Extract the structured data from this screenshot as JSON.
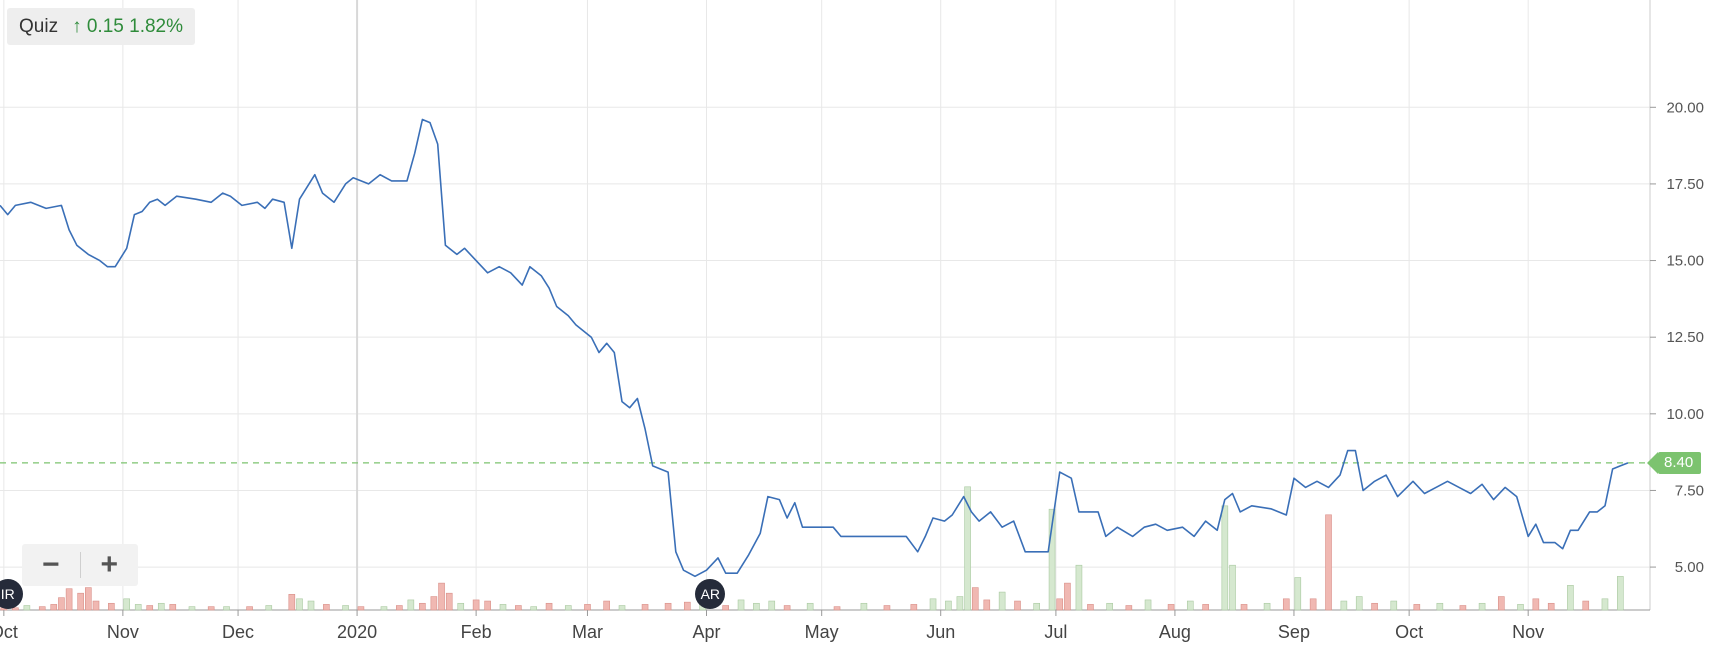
{
  "legend": {
    "symbol": "Quiz",
    "arrow": "↑",
    "change": "0.15",
    "change_pct": "1.82%"
  },
  "zoom": {
    "minus": "−",
    "plus": "+"
  },
  "current_price": {
    "value": 8.4,
    "label": "8.40"
  },
  "events": [
    {
      "label": "IR",
      "date": "2019-10-02"
    },
    {
      "label": "AR",
      "date": "2020-04-02"
    }
  ],
  "colors": {
    "line": "#3a6fb7",
    "grid": "#e8e8e8",
    "vol_up": "#d5e8cf",
    "vol_down": "#f0b8b2",
    "current": "#7cc36f"
  },
  "chart_data": {
    "type": "line",
    "ylim": [
      3.6,
      23.5
    ],
    "yticks": [
      5,
      7.5,
      10,
      12.5,
      15,
      17.5,
      20
    ],
    "ytick_labels": [
      "5.00",
      "7.50",
      "10.00",
      "12.50",
      "15.00",
      "17.50",
      "20.00"
    ],
    "xticks": [
      {
        "date": "2019-10-01",
        "label": "Oct"
      },
      {
        "date": "2019-11-01",
        "label": "Nov"
      },
      {
        "date": "2019-12-01",
        "label": "Dec"
      },
      {
        "date": "2020-01-01",
        "label": "2020"
      },
      {
        "date": "2020-02-01",
        "label": "Feb"
      },
      {
        "date": "2020-03-01",
        "label": "Mar"
      },
      {
        "date": "2020-04-01",
        "label": "Apr"
      },
      {
        "date": "2020-05-01",
        "label": "May"
      },
      {
        "date": "2020-06-01",
        "label": "Jun"
      },
      {
        "date": "2020-07-01",
        "label": "Jul"
      },
      {
        "date": "2020-08-01",
        "label": "Aug"
      },
      {
        "date": "2020-09-01",
        "label": "Sep"
      },
      {
        "date": "2020-10-01",
        "label": "Oct"
      },
      {
        "date": "2020-11-01",
        "label": "Nov"
      }
    ],
    "price": [
      [
        "2019-09-30",
        16.8
      ],
      [
        "2019-10-02",
        16.5
      ],
      [
        "2019-10-04",
        16.8
      ],
      [
        "2019-10-08",
        16.9
      ],
      [
        "2019-10-12",
        16.7
      ],
      [
        "2019-10-16",
        16.8
      ],
      [
        "2019-10-18",
        16.0
      ],
      [
        "2019-10-20",
        15.5
      ],
      [
        "2019-10-23",
        15.2
      ],
      [
        "2019-10-26",
        15.0
      ],
      [
        "2019-10-28",
        14.8
      ],
      [
        "2019-10-30",
        14.8
      ],
      [
        "2019-11-02",
        15.4
      ],
      [
        "2019-11-04",
        16.5
      ],
      [
        "2019-11-06",
        16.6
      ],
      [
        "2019-11-08",
        16.9
      ],
      [
        "2019-11-10",
        17.0
      ],
      [
        "2019-11-12",
        16.8
      ],
      [
        "2019-11-15",
        17.1
      ],
      [
        "2019-11-20",
        17.0
      ],
      [
        "2019-11-24",
        16.9
      ],
      [
        "2019-11-27",
        17.2
      ],
      [
        "2019-11-29",
        17.1
      ],
      [
        "2019-12-02",
        16.8
      ],
      [
        "2019-12-06",
        16.9
      ],
      [
        "2019-12-08",
        16.7
      ],
      [
        "2019-12-10",
        17.0
      ],
      [
        "2019-12-13",
        16.9
      ],
      [
        "2019-12-15",
        15.4
      ],
      [
        "2019-12-17",
        17.0
      ],
      [
        "2019-12-21",
        17.8
      ],
      [
        "2019-12-23",
        17.2
      ],
      [
        "2019-12-26",
        16.9
      ],
      [
        "2019-12-29",
        17.5
      ],
      [
        "2019-12-31",
        17.7
      ],
      [
        "2020-01-04",
        17.5
      ],
      [
        "2020-01-07",
        17.8
      ],
      [
        "2020-01-10",
        17.6
      ],
      [
        "2020-01-14",
        17.6
      ],
      [
        "2020-01-16",
        18.5
      ],
      [
        "2020-01-18",
        19.6
      ],
      [
        "2020-01-20",
        19.5
      ],
      [
        "2020-01-22",
        18.8
      ],
      [
        "2020-01-24",
        15.5
      ],
      [
        "2020-01-27",
        15.2
      ],
      [
        "2020-01-29",
        15.4
      ],
      [
        "2020-02-01",
        15.0
      ],
      [
        "2020-02-04",
        14.6
      ],
      [
        "2020-02-07",
        14.8
      ],
      [
        "2020-02-10",
        14.6
      ],
      [
        "2020-02-13",
        14.2
      ],
      [
        "2020-02-15",
        14.8
      ],
      [
        "2020-02-18",
        14.5
      ],
      [
        "2020-02-20",
        14.1
      ],
      [
        "2020-02-22",
        13.5
      ],
      [
        "2020-02-25",
        13.2
      ],
      [
        "2020-02-27",
        12.9
      ],
      [
        "2020-03-02",
        12.5
      ],
      [
        "2020-03-04",
        12.0
      ],
      [
        "2020-03-06",
        12.3
      ],
      [
        "2020-03-08",
        12.0
      ],
      [
        "2020-03-10",
        10.4
      ],
      [
        "2020-03-12",
        10.2
      ],
      [
        "2020-03-14",
        10.5
      ],
      [
        "2020-03-16",
        9.5
      ],
      [
        "2020-03-18",
        8.3
      ],
      [
        "2020-03-20",
        8.2
      ],
      [
        "2020-03-22",
        8.1
      ],
      [
        "2020-03-24",
        5.5
      ],
      [
        "2020-03-26",
        4.9
      ],
      [
        "2020-03-29",
        4.7
      ],
      [
        "2020-04-01",
        4.9
      ],
      [
        "2020-04-04",
        5.3
      ],
      [
        "2020-04-06",
        4.8
      ],
      [
        "2020-04-09",
        4.8
      ],
      [
        "2020-04-12",
        5.4
      ],
      [
        "2020-04-15",
        6.1
      ],
      [
        "2020-04-17",
        7.3
      ],
      [
        "2020-04-20",
        7.2
      ],
      [
        "2020-04-22",
        6.6
      ],
      [
        "2020-04-24",
        7.1
      ],
      [
        "2020-04-26",
        6.3
      ],
      [
        "2020-04-30",
        6.3
      ],
      [
        "2020-05-04",
        6.3
      ],
      [
        "2020-05-06",
        6.0
      ],
      [
        "2020-05-11",
        6.0
      ],
      [
        "2020-05-15",
        6.0
      ],
      [
        "2020-05-20",
        6.0
      ],
      [
        "2020-05-23",
        6.0
      ],
      [
        "2020-05-26",
        5.5
      ],
      [
        "2020-05-28",
        6.0
      ],
      [
        "2020-05-30",
        6.6
      ],
      [
        "2020-06-02",
        6.5
      ],
      [
        "2020-06-04",
        6.7
      ],
      [
        "2020-06-07",
        7.3
      ],
      [
        "2020-06-09",
        6.8
      ],
      [
        "2020-06-11",
        6.5
      ],
      [
        "2020-06-14",
        6.8
      ],
      [
        "2020-06-17",
        6.3
      ],
      [
        "2020-06-20",
        6.5
      ],
      [
        "2020-06-23",
        5.5
      ],
      [
        "2020-06-25",
        5.5
      ],
      [
        "2020-06-29",
        5.5
      ],
      [
        "2020-07-02",
        8.1
      ],
      [
        "2020-07-05",
        7.9
      ],
      [
        "2020-07-07",
        6.8
      ],
      [
        "2020-07-12",
        6.8
      ],
      [
        "2020-07-14",
        6.0
      ],
      [
        "2020-07-17",
        6.3
      ],
      [
        "2020-07-21",
        6.0
      ],
      [
        "2020-07-24",
        6.3
      ],
      [
        "2020-07-27",
        6.4
      ],
      [
        "2020-07-30",
        6.2
      ],
      [
        "2020-08-03",
        6.3
      ],
      [
        "2020-08-06",
        6.0
      ],
      [
        "2020-08-09",
        6.5
      ],
      [
        "2020-08-12",
        6.2
      ],
      [
        "2020-08-14",
        7.2
      ],
      [
        "2020-08-16",
        7.4
      ],
      [
        "2020-08-18",
        6.8
      ],
      [
        "2020-08-21",
        7.0
      ],
      [
        "2020-08-26",
        6.9
      ],
      [
        "2020-08-30",
        6.7
      ],
      [
        "2020-09-01",
        7.9
      ],
      [
        "2020-09-04",
        7.6
      ],
      [
        "2020-09-07",
        7.8
      ],
      [
        "2020-09-10",
        7.6
      ],
      [
        "2020-09-13",
        8.0
      ],
      [
        "2020-09-15",
        8.8
      ],
      [
        "2020-09-17",
        8.8
      ],
      [
        "2020-09-19",
        7.5
      ],
      [
        "2020-09-22",
        7.8
      ],
      [
        "2020-09-25",
        8.0
      ],
      [
        "2020-09-28",
        7.3
      ],
      [
        "2020-10-02",
        7.8
      ],
      [
        "2020-10-05",
        7.4
      ],
      [
        "2020-10-08",
        7.6
      ],
      [
        "2020-10-11",
        7.8
      ],
      [
        "2020-10-14",
        7.6
      ],
      [
        "2020-10-17",
        7.4
      ],
      [
        "2020-10-20",
        7.7
      ],
      [
        "2020-10-23",
        7.2
      ],
      [
        "2020-10-26",
        7.6
      ],
      [
        "2020-10-29",
        7.3
      ],
      [
        "2020-11-01",
        6.0
      ],
      [
        "2020-11-03",
        6.4
      ],
      [
        "2020-11-05",
        5.8
      ],
      [
        "2020-11-08",
        5.8
      ],
      [
        "2020-11-10",
        5.6
      ],
      [
        "2020-11-12",
        6.2
      ],
      [
        "2020-11-14",
        6.2
      ],
      [
        "2020-11-17",
        6.8
      ],
      [
        "2020-11-19",
        6.8
      ],
      [
        "2020-11-21",
        7.0
      ],
      [
        "2020-11-23",
        8.2
      ],
      [
        "2020-11-25",
        8.3
      ],
      [
        "2020-11-27",
        8.4
      ]
    ],
    "volume": [
      [
        "2019-10-01",
        0.3,
        "down"
      ],
      [
        "2019-10-04",
        0.2,
        "down"
      ],
      [
        "2019-10-07",
        0.4,
        "up"
      ],
      [
        "2019-10-11",
        0.3,
        "down"
      ],
      [
        "2019-10-14",
        0.5,
        "down"
      ],
      [
        "2019-10-16",
        1.1,
        "down"
      ],
      [
        "2019-10-18",
        1.9,
        "down"
      ],
      [
        "2019-10-21",
        1.5,
        "down"
      ],
      [
        "2019-10-23",
        2.0,
        "down"
      ],
      [
        "2019-10-25",
        0.8,
        "down"
      ],
      [
        "2019-10-29",
        0.6,
        "down"
      ],
      [
        "2019-11-02",
        1.0,
        "up"
      ],
      [
        "2019-11-05",
        0.5,
        "up"
      ],
      [
        "2019-11-08",
        0.4,
        "down"
      ],
      [
        "2019-11-11",
        0.6,
        "up"
      ],
      [
        "2019-11-14",
        0.5,
        "down"
      ],
      [
        "2019-11-19",
        0.3,
        "up"
      ],
      [
        "2019-11-24",
        0.3,
        "down"
      ],
      [
        "2019-11-28",
        0.3,
        "up"
      ],
      [
        "2019-12-04",
        0.3,
        "down"
      ],
      [
        "2019-12-09",
        0.4,
        "up"
      ],
      [
        "2019-12-15",
        1.4,
        "down"
      ],
      [
        "2019-12-17",
        1.0,
        "up"
      ],
      [
        "2019-12-20",
        0.8,
        "up"
      ],
      [
        "2019-12-24",
        0.5,
        "down"
      ],
      [
        "2019-12-29",
        0.4,
        "up"
      ],
      [
        "2020-01-02",
        0.3,
        "down"
      ],
      [
        "2020-01-08",
        0.3,
        "up"
      ],
      [
        "2020-01-12",
        0.4,
        "down"
      ],
      [
        "2020-01-15",
        0.9,
        "up"
      ],
      [
        "2020-01-18",
        0.6,
        "down"
      ],
      [
        "2020-01-21",
        1.2,
        "down"
      ],
      [
        "2020-01-23",
        2.4,
        "down"
      ],
      [
        "2020-01-25",
        1.5,
        "down"
      ],
      [
        "2020-01-28",
        0.6,
        "up"
      ],
      [
        "2020-02-01",
        0.9,
        "down"
      ],
      [
        "2020-02-04",
        0.8,
        "down"
      ],
      [
        "2020-02-08",
        0.5,
        "up"
      ],
      [
        "2020-02-12",
        0.4,
        "down"
      ],
      [
        "2020-02-16",
        0.3,
        "up"
      ],
      [
        "2020-02-20",
        0.6,
        "down"
      ],
      [
        "2020-02-25",
        0.4,
        "up"
      ],
      [
        "2020-03-01",
        0.5,
        "down"
      ],
      [
        "2020-03-06",
        0.8,
        "down"
      ],
      [
        "2020-03-10",
        0.4,
        "up"
      ],
      [
        "2020-03-16",
        0.5,
        "down"
      ],
      [
        "2020-03-22",
        0.6,
        "down"
      ],
      [
        "2020-03-27",
        0.7,
        "down"
      ],
      [
        "2020-03-31",
        0.6,
        "up"
      ],
      [
        "2020-04-06",
        0.4,
        "down"
      ],
      [
        "2020-04-10",
        0.9,
        "up"
      ],
      [
        "2020-04-14",
        0.6,
        "up"
      ],
      [
        "2020-04-18",
        0.8,
        "up"
      ],
      [
        "2020-04-22",
        0.4,
        "down"
      ],
      [
        "2020-04-28",
        0.6,
        "up"
      ],
      [
        "2020-05-05",
        0.3,
        "down"
      ],
      [
        "2020-05-12",
        0.6,
        "up"
      ],
      [
        "2020-05-18",
        0.4,
        "down"
      ],
      [
        "2020-05-25",
        0.5,
        "down"
      ],
      [
        "2020-05-30",
        1.0,
        "up"
      ],
      [
        "2020-06-03",
        0.8,
        "up"
      ],
      [
        "2020-06-06",
        1.2,
        "up"
      ],
      [
        "2020-06-08",
        11.0,
        "up"
      ],
      [
        "2020-06-10",
        2.0,
        "down"
      ],
      [
        "2020-06-13",
        0.9,
        "down"
      ],
      [
        "2020-06-17",
        1.6,
        "up"
      ],
      [
        "2020-06-21",
        0.8,
        "down"
      ],
      [
        "2020-06-26",
        0.6,
        "up"
      ],
      [
        "2020-06-30",
        9.0,
        "up"
      ],
      [
        "2020-07-02",
        1.0,
        "down"
      ],
      [
        "2020-07-04",
        2.4,
        "down"
      ],
      [
        "2020-07-07",
        4.0,
        "up"
      ],
      [
        "2020-07-10",
        0.5,
        "down"
      ],
      [
        "2020-07-15",
        0.6,
        "up"
      ],
      [
        "2020-07-20",
        0.4,
        "down"
      ],
      [
        "2020-07-25",
        0.9,
        "up"
      ],
      [
        "2020-07-31",
        0.5,
        "down"
      ],
      [
        "2020-08-05",
        0.8,
        "up"
      ],
      [
        "2020-08-09",
        0.5,
        "down"
      ],
      [
        "2020-08-14",
        9.3,
        "up"
      ],
      [
        "2020-08-16",
        4.0,
        "up"
      ],
      [
        "2020-08-19",
        0.5,
        "down"
      ],
      [
        "2020-08-25",
        0.6,
        "up"
      ],
      [
        "2020-08-30",
        1.0,
        "down"
      ],
      [
        "2020-09-02",
        2.9,
        "up"
      ],
      [
        "2020-09-06",
        1.0,
        "down"
      ],
      [
        "2020-09-10",
        8.5,
        "down"
      ],
      [
        "2020-09-14",
        0.8,
        "up"
      ],
      [
        "2020-09-18",
        1.2,
        "up"
      ],
      [
        "2020-09-22",
        0.6,
        "down"
      ],
      [
        "2020-09-27",
        0.8,
        "up"
      ],
      [
        "2020-10-03",
        0.5,
        "down"
      ],
      [
        "2020-10-09",
        0.6,
        "up"
      ],
      [
        "2020-10-15",
        0.4,
        "down"
      ],
      [
        "2020-10-20",
        0.6,
        "up"
      ],
      [
        "2020-10-25",
        1.2,
        "down"
      ],
      [
        "2020-10-30",
        0.5,
        "up"
      ],
      [
        "2020-11-03",
        1.0,
        "down"
      ],
      [
        "2020-11-07",
        0.6,
        "down"
      ],
      [
        "2020-11-12",
        2.2,
        "up"
      ],
      [
        "2020-11-16",
        0.8,
        "down"
      ],
      [
        "2020-11-21",
        1.0,
        "up"
      ],
      [
        "2020-11-25",
        3.0,
        "up"
      ]
    ]
  }
}
